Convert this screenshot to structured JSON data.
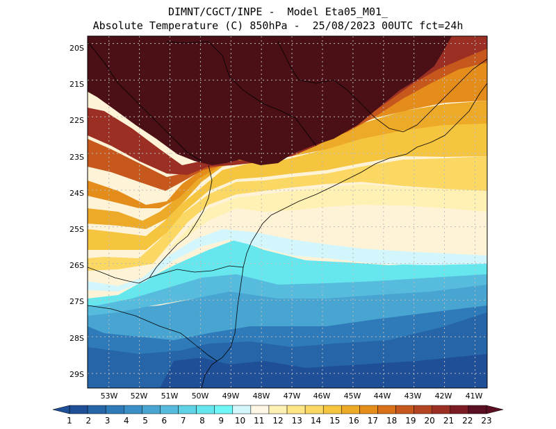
{
  "header": {
    "line1": "DIMNT/CGCT/INPE -  Model Eta05_M01_",
    "line2": "Absolute Temperature (C) 850hPa -  25/08/2023 00UTC fct=24h"
  },
  "map": {
    "lat_labels": [
      "20S",
      "21S",
      "22S",
      "23S",
      "24S",
      "25S",
      "26S",
      "27S",
      "28S",
      "29S"
    ],
    "lon_labels": [
      "53W",
      "52W",
      "51W",
      "50W",
      "49W",
      "48W",
      "47W",
      "46W",
      "45W",
      "44W",
      "43W",
      "42W",
      "41W"
    ],
    "lat_range": [
      -29.4,
      -19.8
    ],
    "lon_range": [
      -53.7,
      -40.6
    ],
    "colors": {
      "warm_max": "#4a1016",
      "cold_min": "#1f4f97",
      "border": "#000000",
      "grid": "#bbbbbb"
    }
  },
  "colorbar": {
    "labels": [
      "1",
      "2",
      "3",
      "4",
      "5",
      "6",
      "7",
      "8",
      "9",
      "10",
      "11",
      "12",
      "13",
      "14",
      "15",
      "16",
      "17",
      "18",
      "19",
      "20",
      "21",
      "22",
      "23"
    ],
    "colors": [
      "#1f4f97",
      "#2565a8",
      "#2f7ab8",
      "#3a8fc6",
      "#48a5d2",
      "#56bbdc",
      "#5fd2e6",
      "#66e7ee",
      "#6ff7f8",
      "#d2f6fb",
      "#fff7e6",
      "#fff0b3",
      "#fee585",
      "#fbd764",
      "#f5c540",
      "#ecaa28",
      "#e58d1a",
      "#d8701a",
      "#c6581e",
      "#b24422",
      "#9b2f24",
      "#7c1b22",
      "#5a1022"
    ]
  }
}
